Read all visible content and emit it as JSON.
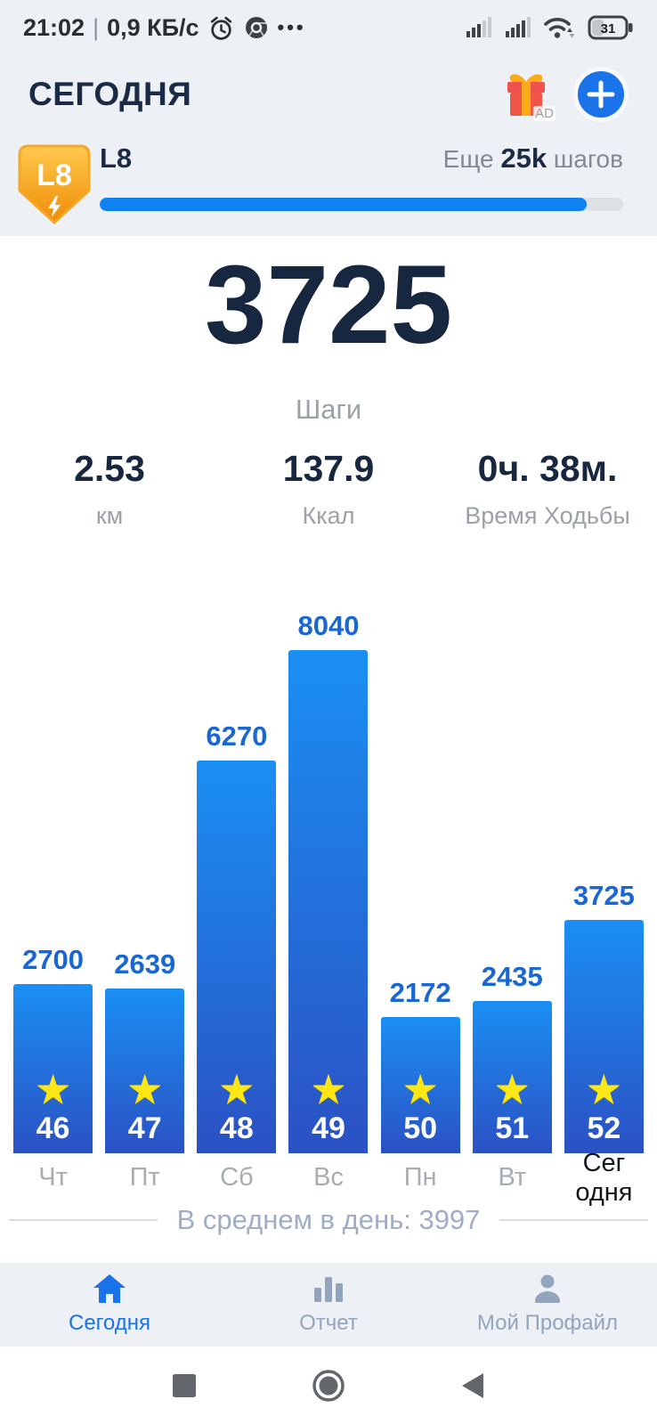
{
  "status_bar": {
    "time": "21:02",
    "divider": "|",
    "net_speed": "0,9 КБ/с",
    "menu_dots": "•••",
    "battery_percent": "31"
  },
  "header": {
    "title": "СЕГОДНЯ",
    "gift_ad_label": "AD"
  },
  "level": {
    "badge_label": "L8",
    "title": "L8",
    "remaining_prefix": "Еще ",
    "remaining_value": "25k",
    "remaining_suffix": " шагов",
    "progress_percent": 93,
    "progress_color": "#1081f1"
  },
  "today_summary": {
    "steps_value": "3725",
    "steps_label": "Шаги",
    "stats": [
      {
        "value": "2.53",
        "label": "км"
      },
      {
        "value": "137.9",
        "label": "Ккал"
      },
      {
        "value": "0ч. 38м.",
        "label": "Время Ходьбы"
      }
    ]
  },
  "chart_data": {
    "type": "bar",
    "title": "",
    "xlabel": "",
    "ylabel": "",
    "categories": [
      "Чт",
      "Пт",
      "Сб",
      "Вс",
      "Пн",
      "Вт",
      "Сегодня"
    ],
    "day_display_labels": [
      "Чт",
      "Пт",
      "Сб",
      "Вс",
      "Пн",
      "Вт",
      "Сег\nодня"
    ],
    "values": [
      2700,
      2639,
      6270,
      8040,
      2172,
      2435,
      3725
    ],
    "star_badges": [
      "46",
      "47",
      "48",
      "49",
      "50",
      "51",
      "52"
    ],
    "star_icon_glyph": "★",
    "today_index": 6,
    "ylim": [
      0,
      8040
    ],
    "grid": false,
    "bar_gradient_top": "#1a8ff3",
    "bar_gradient_bottom": "#2b51c4",
    "value_label_color": "#1967d2",
    "average_text": "В среднем в день: 3997"
  },
  "bottom_nav": {
    "active_color": "#1a73e8",
    "inactive_color": "#93a4bd",
    "items": [
      {
        "label": "Сегодня",
        "icon": "home-icon",
        "active": true
      },
      {
        "label": "Отчет",
        "icon": "report-chart-icon",
        "active": false
      },
      {
        "label": "Мой Профайл",
        "icon": "profile-icon",
        "active": false
      }
    ]
  }
}
